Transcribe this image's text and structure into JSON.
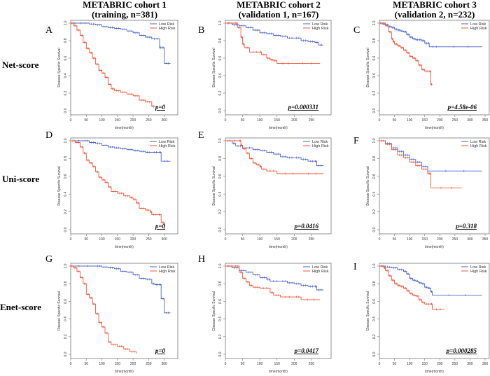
{
  "column_titles": [
    {
      "line1": "METABRIC cohort 1",
      "line2": "(training, n=381)"
    },
    {
      "line1": "METABRIC cohort 2",
      "line2": "(validation 1, n=167)"
    },
    {
      "line1": "METABRIC cohort 3",
      "line2": "(validation 2, n=232)"
    }
  ],
  "row_labels": [
    "Net-score",
    "Uni-score",
    "Enet-score"
  ],
  "colors": {
    "low": "#4a64c8",
    "high": "#f0553a",
    "axis": "#777777"
  },
  "chart_data": [
    {
      "type": "line",
      "panel": "A",
      "row": 0,
      "col": 0,
      "title": "",
      "xlabel": "time(month)",
      "ylabel": "Disease Specific Survival",
      "xlim": [
        0,
        330
      ],
      "ylim": [
        0,
        1
      ],
      "xticks": [
        0,
        50,
        100,
        150,
        200,
        250,
        300
      ],
      "yticks": [
        0.0,
        0.2,
        0.4,
        0.6,
        0.8,
        1.0
      ],
      "legend": [
        "Low Risk",
        "High Risk"
      ],
      "legend_position": "top-right",
      "pvalue": "p=0",
      "series": [
        {
          "name": "Low Risk",
          "x": [
            0,
            20,
            60,
            80,
            100,
            120,
            140,
            160,
            180,
            200,
            220,
            240,
            260,
            285,
            290,
            300,
            320
          ],
          "y": [
            1.0,
            1.0,
            0.99,
            0.98,
            0.96,
            0.95,
            0.94,
            0.93,
            0.91,
            0.89,
            0.86,
            0.84,
            0.82,
            0.72,
            0.72,
            0.54,
            0.54
          ]
        },
        {
          "name": "High Risk",
          "x": [
            0,
            10,
            20,
            30,
            40,
            50,
            60,
            70,
            80,
            90,
            100,
            110,
            120,
            130,
            140,
            160,
            180,
            200,
            220,
            240,
            260,
            270
          ],
          "y": [
            1.0,
            0.97,
            0.92,
            0.86,
            0.78,
            0.71,
            0.66,
            0.6,
            0.53,
            0.46,
            0.43,
            0.38,
            0.3,
            0.25,
            0.23,
            0.21,
            0.19,
            0.17,
            0.12,
            0.1,
            0.05,
            0.05
          ]
        }
      ]
    },
    {
      "type": "line",
      "panel": "B",
      "row": 0,
      "col": 1,
      "title": "",
      "xlabel": "time(month)",
      "ylabel": "Disease Specific Survival",
      "xlim": [
        0,
        295
      ],
      "ylim": [
        0,
        1
      ],
      "xticks": [
        0,
        50,
        100,
        150,
        200,
        250
      ],
      "yticks": [
        0.0,
        0.2,
        0.4,
        0.6,
        0.8,
        1.0
      ],
      "legend": [
        "Low Risk",
        "High Risk"
      ],
      "legend_position": "top-right",
      "pvalue": "p=0.000331",
      "series": [
        {
          "name": "Low Risk",
          "x": [
            0,
            20,
            40,
            60,
            80,
            100,
            120,
            140,
            160,
            180,
            200,
            220,
            240,
            260,
            270,
            285
          ],
          "y": [
            1.0,
            0.98,
            0.97,
            0.95,
            0.92,
            0.89,
            0.88,
            0.86,
            0.85,
            0.83,
            0.83,
            0.8,
            0.79,
            0.78,
            0.75,
            0.75
          ]
        },
        {
          "name": "High Risk",
          "x": [
            0,
            28,
            35,
            45,
            50,
            55,
            70,
            100,
            105,
            120,
            130,
            140,
            150,
            200,
            275
          ],
          "y": [
            1.0,
            1.0,
            0.95,
            0.84,
            0.76,
            0.72,
            0.67,
            0.67,
            0.64,
            0.6,
            0.58,
            0.57,
            0.54,
            0.54,
            0.54
          ]
        }
      ]
    },
    {
      "type": "line",
      "panel": "C",
      "row": 0,
      "col": 2,
      "title": "",
      "xlabel": "time(month)",
      "ylabel": "Disease Specific Survival",
      "xlim": [
        0,
        350
      ],
      "ylim": [
        0,
        1
      ],
      "xticks": [
        0,
        50,
        100,
        150,
        200,
        250,
        300,
        350
      ],
      "yticks": [
        0.0,
        0.2,
        0.4,
        0.6,
        0.8,
        1.0
      ],
      "legend": [
        "Low Risk",
        "High Risk"
      ],
      "legend_position": "top-right",
      "pvalue": "p=4.58e-06",
      "series": [
        {
          "name": "Low Risk",
          "x": [
            0,
            10,
            20,
            30,
            40,
            50,
            60,
            70,
            80,
            90,
            100,
            110,
            120,
            130,
            140,
            150,
            160,
            165,
            200,
            340
          ],
          "y": [
            1.0,
            0.99,
            0.98,
            0.96,
            0.95,
            0.93,
            0.92,
            0.91,
            0.9,
            0.87,
            0.84,
            0.82,
            0.81,
            0.81,
            0.8,
            0.77,
            0.77,
            0.73,
            0.73,
            0.73
          ]
        },
        {
          "name": "High Risk",
          "x": [
            0,
            20,
            30,
            40,
            45,
            50,
            60,
            70,
            80,
            90,
            100,
            110,
            120,
            130,
            140,
            150,
            165,
            170,
            175
          ],
          "y": [
            1.0,
            0.97,
            0.9,
            0.82,
            0.79,
            0.76,
            0.74,
            0.72,
            0.69,
            0.66,
            0.62,
            0.6,
            0.57,
            0.52,
            0.47,
            0.45,
            0.45,
            0.3,
            0.3
          ]
        }
      ]
    },
    {
      "type": "line",
      "panel": "D",
      "row": 1,
      "col": 0,
      "title": "",
      "xlabel": "time(month)",
      "ylabel": "Disease Specific Survival",
      "xlim": [
        0,
        330
      ],
      "ylim": [
        0,
        1
      ],
      "xticks": [
        0,
        50,
        100,
        150,
        200,
        250,
        300
      ],
      "yticks": [
        0.0,
        0.2,
        0.4,
        0.6,
        0.8,
        1.0
      ],
      "legend": [
        "Low Risk",
        "High Risk"
      ],
      "legend_position": "top-right",
      "pvalue": "p=0",
      "series": [
        {
          "name": "Low Risk",
          "x": [
            0,
            40,
            60,
            80,
            100,
            120,
            140,
            160,
            180,
            200,
            220,
            240,
            260,
            283,
            290,
            320
          ],
          "y": [
            1.0,
            1.0,
            0.98,
            0.97,
            0.95,
            0.93,
            0.92,
            0.91,
            0.9,
            0.89,
            0.88,
            0.87,
            0.87,
            0.87,
            0.77,
            0.77
          ]
        },
        {
          "name": "High Risk",
          "x": [
            0,
            15,
            30,
            40,
            50,
            60,
            70,
            80,
            90,
            100,
            110,
            120,
            130,
            150,
            170,
            190,
            200,
            210,
            220,
            240,
            255,
            260,
            280,
            290,
            300
          ],
          "y": [
            1.0,
            0.98,
            0.93,
            0.86,
            0.78,
            0.75,
            0.71,
            0.65,
            0.59,
            0.56,
            0.53,
            0.48,
            0.43,
            0.41,
            0.38,
            0.36,
            0.34,
            0.3,
            0.24,
            0.22,
            0.2,
            0.17,
            0.17,
            0.08,
            0.0
          ]
        }
      ]
    },
    {
      "type": "line",
      "panel": "E",
      "row": 1,
      "col": 1,
      "title": "",
      "xlabel": "time(month)",
      "ylabel": "Disease Specific Survival",
      "xlim": [
        0,
        295
      ],
      "ylim": [
        0,
        1
      ],
      "xticks": [
        0,
        50,
        100,
        150,
        200,
        250
      ],
      "yticks": [
        0.0,
        0.2,
        0.4,
        0.6,
        0.8,
        1.0
      ],
      "legend": [
        "Low Risk",
        "High Risk"
      ],
      "legend_position": "top-right",
      "pvalue": "p=0.0416",
      "series": [
        {
          "name": "Low Risk",
          "x": [
            0,
            20,
            30,
            50,
            80,
            100,
            120,
            140,
            160,
            180,
            200,
            220,
            240,
            260,
            265,
            285
          ],
          "y": [
            1.0,
            0.97,
            0.94,
            0.92,
            0.9,
            0.89,
            0.87,
            0.85,
            0.82,
            0.81,
            0.81,
            0.79,
            0.77,
            0.77,
            0.72,
            0.72
          ]
        },
        {
          "name": "High Risk",
          "x": [
            0,
            40,
            45,
            50,
            60,
            70,
            80,
            90,
            100,
            105,
            120,
            150,
            220,
            285
          ],
          "y": [
            1.0,
            1.0,
            0.95,
            0.91,
            0.86,
            0.8,
            0.75,
            0.73,
            0.71,
            0.68,
            0.66,
            0.63,
            0.63,
            0.63
          ]
        }
      ]
    },
    {
      "type": "line",
      "panel": "F",
      "row": 1,
      "col": 2,
      "title": "",
      "xlabel": "time(month)",
      "ylabel": "Disease Specific Survival",
      "xlim": [
        0,
        350
      ],
      "ylim": [
        0,
        1
      ],
      "xticks": [
        0,
        50,
        100,
        150,
        200,
        250,
        300,
        350
      ],
      "yticks": [
        0.0,
        0.2,
        0.4,
        0.6,
        0.8,
        1.0
      ],
      "legend": [
        "Low Risk",
        "High Risk"
      ],
      "legend_position": "top-right",
      "pvalue": "p=0.318",
      "series": [
        {
          "name": "Low Risk",
          "x": [
            0,
            20,
            40,
            60,
            80,
            100,
            120,
            140,
            160,
            340
          ],
          "y": [
            1.0,
            0.97,
            0.92,
            0.88,
            0.84,
            0.79,
            0.76,
            0.71,
            0.66,
            0.66
          ]
        },
        {
          "name": "High Risk",
          "x": [
            0,
            20,
            40,
            60,
            80,
            100,
            120,
            140,
            160,
            168,
            170,
            272
          ],
          "y": [
            1.0,
            0.96,
            0.9,
            0.84,
            0.81,
            0.76,
            0.72,
            0.68,
            0.63,
            0.63,
            0.47,
            0.47
          ]
        }
      ]
    },
    {
      "type": "line",
      "panel": "G",
      "row": 2,
      "col": 0,
      "title": "",
      "xlabel": "time(month)",
      "ylabel": "Disease Specific Survival",
      "xlim": [
        0,
        330
      ],
      "ylim": [
        0,
        1
      ],
      "xticks": [
        0,
        50,
        100,
        150,
        200,
        250,
        300
      ],
      "yticks": [
        0.0,
        0.2,
        0.4,
        0.6,
        0.8,
        1.0
      ],
      "legend": [
        "Low Risk",
        "High Risk"
      ],
      "legend_position": "top-right",
      "pvalue": "p=0",
      "series": [
        {
          "name": "Low Risk",
          "x": [
            0,
            80,
            100,
            120,
            140,
            160,
            180,
            200,
            220,
            240,
            260,
            270,
            283,
            290,
            300,
            320
          ],
          "y": [
            1.0,
            1.0,
            0.99,
            0.98,
            0.97,
            0.94,
            0.93,
            0.9,
            0.86,
            0.85,
            0.8,
            0.79,
            0.79,
            0.63,
            0.47,
            0.47
          ]
        },
        {
          "name": "High Risk",
          "x": [
            0,
            10,
            20,
            30,
            40,
            50,
            60,
            70,
            80,
            90,
            100,
            110,
            120,
            130,
            150,
            170,
            190,
            210
          ],
          "y": [
            1.0,
            0.98,
            0.94,
            0.87,
            0.8,
            0.68,
            0.64,
            0.57,
            0.46,
            0.36,
            0.31,
            0.24,
            0.14,
            0.11,
            0.09,
            0.06,
            0.03,
            0.01
          ]
        }
      ]
    },
    {
      "type": "line",
      "panel": "H",
      "row": 2,
      "col": 1,
      "title": "",
      "xlabel": "time(month)",
      "ylabel": "Disease Specific Survival",
      "xlim": [
        0,
        295
      ],
      "ylim": [
        0,
        1
      ],
      "xticks": [
        0,
        50,
        100,
        150,
        200,
        250
      ],
      "yticks": [
        0.0,
        0.2,
        0.4,
        0.6,
        0.8,
        1.0
      ],
      "legend": [
        "Low Risk",
        "High Risk"
      ],
      "legend_position": "top-right",
      "pvalue": "p=0.0417",
      "series": [
        {
          "name": "Low Risk",
          "x": [
            0,
            20,
            40,
            60,
            80,
            100,
            120,
            130,
            160,
            180,
            200,
            220,
            240,
            260,
            265,
            285
          ],
          "y": [
            1.0,
            0.98,
            0.95,
            0.93,
            0.9,
            0.87,
            0.85,
            0.83,
            0.83,
            0.81,
            0.8,
            0.78,
            0.77,
            0.77,
            0.73,
            0.73
          ]
        },
        {
          "name": "High Risk",
          "x": [
            0,
            25,
            40,
            50,
            60,
            70,
            80,
            100,
            130,
            140,
            160,
            200,
            220,
            275
          ],
          "y": [
            1.0,
            1.0,
            0.93,
            0.86,
            0.82,
            0.78,
            0.76,
            0.75,
            0.7,
            0.67,
            0.65,
            0.65,
            0.62,
            0.62
          ]
        }
      ]
    },
    {
      "type": "line",
      "panel": "I",
      "row": 2,
      "col": 2,
      "title": "",
      "xlabel": "time(month)",
      "ylabel": "Disease Specific Survival",
      "xlim": [
        0,
        350
      ],
      "ylim": [
        0,
        1
      ],
      "xticks": [
        0,
        50,
        100,
        150,
        200,
        250,
        300,
        350
      ],
      "yticks": [
        0.0,
        0.2,
        0.4,
        0.6,
        0.8,
        1.0
      ],
      "legend": [
        "Low Risk",
        "High Risk"
      ],
      "legend_position": "top-right",
      "pvalue": "p=0.000285",
      "series": [
        {
          "name": "Low Risk",
          "x": [
            0,
            20,
            40,
            60,
            80,
            90,
            100,
            110,
            120,
            130,
            140,
            150,
            160,
            170,
            175,
            340
          ],
          "y": [
            1.0,
            0.99,
            0.98,
            0.96,
            0.94,
            0.91,
            0.86,
            0.84,
            0.83,
            0.81,
            0.8,
            0.76,
            0.75,
            0.71,
            0.67,
            0.67
          ]
        },
        {
          "name": "High Risk",
          "x": [
            0,
            15,
            20,
            30,
            40,
            50,
            60,
            70,
            80,
            90,
            100,
            110,
            120,
            130,
            140,
            150,
            170,
            175,
            215
          ],
          "y": [
            1.0,
            0.98,
            0.95,
            0.89,
            0.84,
            0.8,
            0.78,
            0.77,
            0.75,
            0.72,
            0.69,
            0.67,
            0.66,
            0.62,
            0.59,
            0.57,
            0.57,
            0.51,
            0.51
          ]
        }
      ]
    }
  ]
}
